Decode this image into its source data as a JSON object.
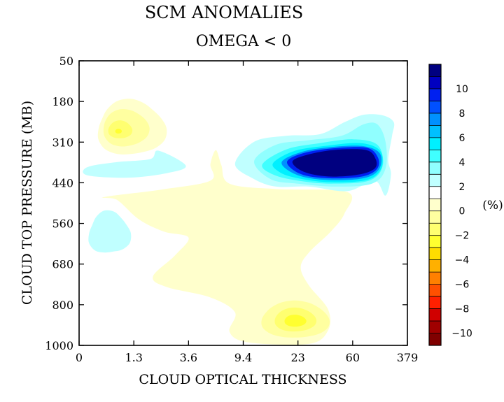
{
  "chart_data": {
    "type": "heatmap",
    "title": "SCM ANOMALIES",
    "subtitle": "OMEGA < 0",
    "xlabel": "CLOUD OPTICAL THICKNESS",
    "ylabel": "CLOUD TOP PRESSURE (MB)",
    "x_tick_labels": [
      "0",
      "1.3",
      "3.6",
      "9.4",
      "23",
      "60",
      "379"
    ],
    "y_tick_labels": [
      "50",
      "180",
      "310",
      "440",
      "560",
      "680",
      "800",
      "1000"
    ],
    "colorbar": {
      "unit": "(%)",
      "tick_labels": [
        "10",
        "8",
        "6",
        "4",
        "2",
        "0",
        "−2",
        "−4",
        "−6",
        "−8",
        "−10"
      ],
      "tick_values": [
        10,
        8,
        6,
        4,
        2,
        0,
        -2,
        -4,
        -6,
        -8,
        -10
      ],
      "levels_high_to_low": [
        11,
        10,
        9,
        8,
        7,
        6,
        5,
        4,
        3,
        2,
        1,
        0,
        -1,
        -2,
        -3,
        -4,
        -5,
        -6,
        -7,
        -8,
        -9,
        -10
      ],
      "colors_high_to_low": [
        "#000080",
        "#0000c0",
        "#0020f0",
        "#0050ff",
        "#0090ff",
        "#00c0ff",
        "#00f0ff",
        "#40ffff",
        "#90ffff",
        "#c0ffff",
        "#ffffff",
        "#ffffcc",
        "#ffffa0",
        "#ffff70",
        "#ffff30",
        "#ffdd00",
        "#ffb000",
        "#ff8000",
        "#ff5000",
        "#ff2000",
        "#d00000",
        "#a00000",
        "#800000"
      ]
    },
    "x_range": [
      0,
      6
    ],
    "y_range": [
      1000,
      50
    ],
    "grid": false,
    "features": [
      {
        "name": "positive anomaly (clear to heavy)",
        "x_center": 5.0,
        "y_center": 390,
        "peak": 11,
        "approx_range": "x 3.8-6.0, y 270-470"
      },
      {
        "name": "positive anomaly (light)",
        "x_center": 2.0,
        "y_center": 350,
        "peak": 1,
        "approx_range": "x 1.5-2.8, y 310-400"
      },
      {
        "name": "positive anomaly (light)",
        "x_center": 0.6,
        "y_center": 630,
        "peak": 1,
        "approx_range": "x 0.3-1.0, y 560-700"
      },
      {
        "name": "negative anomaly",
        "x_center": 0.8,
        "y_center": 260,
        "peak": -4,
        "approx_range": "x 0.3-1.5, y 170-330"
      },
      {
        "name": "negative anomaly",
        "x_center": 4.1,
        "y_center": 920,
        "peak": -4,
        "approx_range": "x 3.1-5.0, y 830-980"
      },
      {
        "name": "negative anomaly (broad weak)",
        "x_center": 3.5,
        "y_center": 630,
        "peak": -1,
        "approx_range": "x 0.5-5.0, y 480-900"
      }
    ]
  }
}
